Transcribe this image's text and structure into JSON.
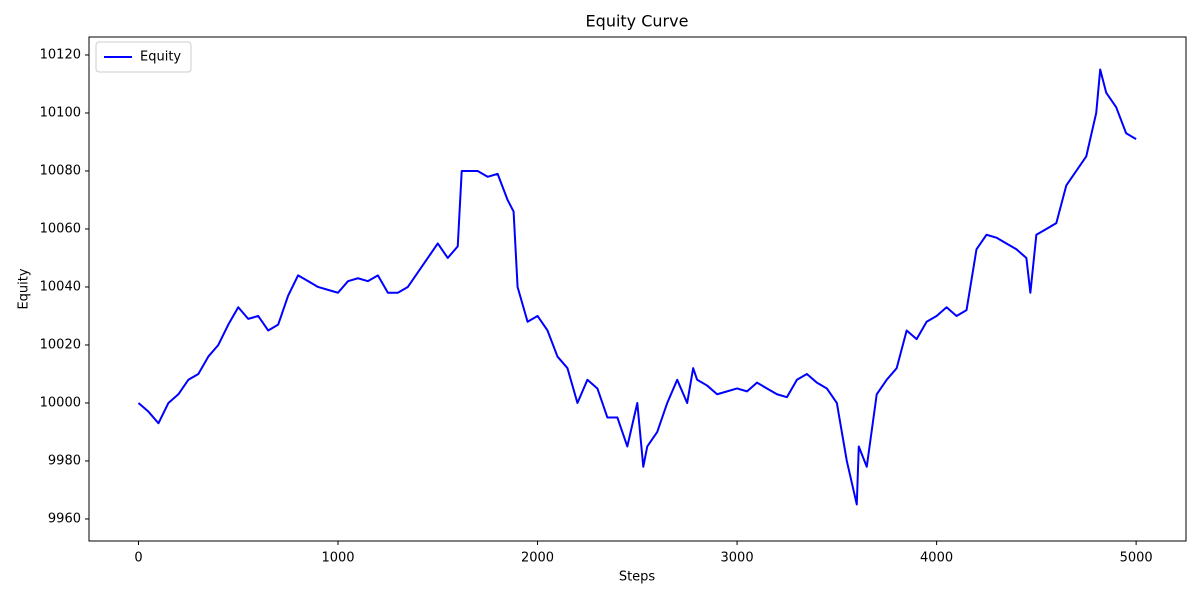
{
  "chart_data": {
    "type": "line",
    "title": "Equity Curve",
    "x_label": "Steps",
    "y_label": "Equity",
    "x": [
      0,
      50,
      100,
      150,
      200,
      250,
      300,
      350,
      400,
      450,
      500,
      550,
      600,
      650,
      700,
      750,
      800,
      850,
      900,
      950,
      1000,
      1050,
      1100,
      1150,
      1200,
      1250,
      1300,
      1350,
      1400,
      1450,
      1500,
      1550,
      1600,
      1620,
      1650,
      1700,
      1750,
      1800,
      1850,
      1880,
      1900,
      1950,
      2000,
      2050,
      2100,
      2150,
      2200,
      2250,
      2300,
      2350,
      2400,
      2450,
      2500,
      2530,
      2550,
      2600,
      2650,
      2700,
      2750,
      2780,
      2800,
      2850,
      2900,
      2950,
      3000,
      3050,
      3100,
      3150,
      3200,
      3250,
      3300,
      3350,
      3400,
      3450,
      3500,
      3550,
      3600,
      3610,
      3650,
      3700,
      3750,
      3800,
      3850,
      3900,
      3950,
      4000,
      4050,
      4100,
      4150,
      4200,
      4250,
      4300,
      4350,
      4400,
      4450,
      4470,
      4500,
      4550,
      4600,
      4650,
      4700,
      4750,
      4800,
      4820,
      4850,
      4900,
      4950,
      5000
    ],
    "series": [
      {
        "name": "Equity",
        "color": "#0000ff",
        "values": [
          10000,
          9997,
          9993,
          10000,
          10003,
          10008,
          10010,
          10016,
          10020,
          10027,
          10033,
          10029,
          10030,
          10025,
          10027,
          10037,
          10044,
          10042,
          10040,
          10039,
          10038,
          10042,
          10043,
          10042,
          10044,
          10038,
          10038,
          10040,
          10045,
          10050,
          10055,
          10050,
          10054,
          10080,
          10080,
          10080,
          10078,
          10079,
          10070,
          10066,
          10040,
          10028,
          10030,
          10025,
          10016,
          10012,
          10000,
          10008,
          10005,
          9995,
          9995,
          9985,
          10000,
          9978,
          9985,
          9990,
          10000,
          10008,
          10000,
          10012,
          10008,
          10006,
          10003,
          10004,
          10005,
          10004,
          10007,
          10005,
          10003,
          10002,
          10008,
          10010,
          10007,
          10005,
          10000,
          9980,
          9965,
          9985,
          9978,
          10003,
          10008,
          10012,
          10025,
          10022,
          10028,
          10030,
          10033,
          10030,
          10032,
          10053,
          10058,
          10057,
          10055,
          10053,
          10050,
          10038,
          10058,
          10060,
          10062,
          10075,
          10080,
          10085,
          10100,
          10115,
          10107,
          10102,
          10093,
          10091
        ]
      }
    ],
    "xlim": [
      -248,
      5250
    ],
    "ylim": [
      9952.4,
      10126.2
    ],
    "xticks": [
      0,
      1000,
      2000,
      3000,
      4000,
      5000
    ],
    "yticks": [
      9960,
      9980,
      10000,
      10020,
      10040,
      10060,
      10080,
      10100,
      10120
    ],
    "legend": "upper left",
    "grid": false
  }
}
